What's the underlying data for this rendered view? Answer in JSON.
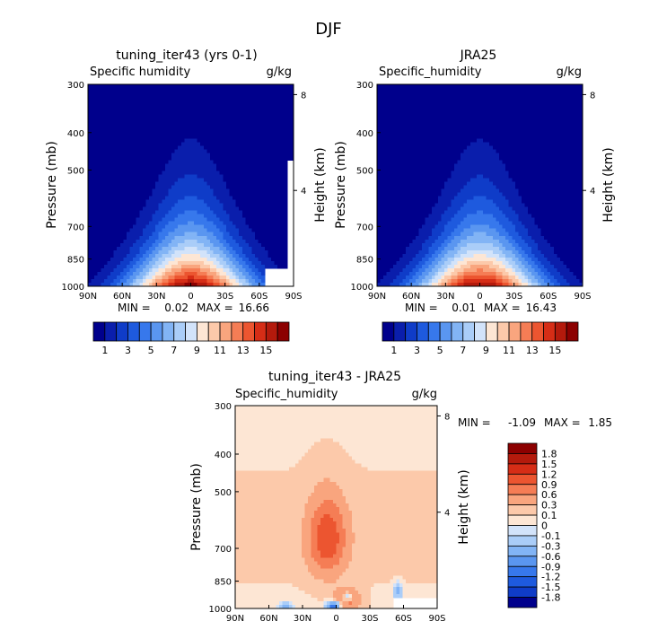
{
  "title": "DJF",
  "chart_data": [
    {
      "type": "heatmap",
      "id": "model",
      "title": "tuning_iter43 (yrs 0-1)",
      "variable": "Specific humidity",
      "units": "g/kg",
      "ylabel": "Pressure (mb)",
      "ylabel_right": "Height (km)",
      "x_ticks": [
        "90N",
        "60N",
        "30N",
        "0",
        "30S",
        "60S",
        "90S"
      ],
      "y_ticks": [
        300,
        400,
        500,
        700,
        850,
        1000
      ],
      "height_ticks": [
        8,
        4
      ],
      "min_label": "MIN =",
      "min_value": "0.02",
      "max_label": "MAX =",
      "max_value": "16.66",
      "min": 0.02,
      "max": 16.66,
      "peak_lat": 0,
      "colorbar_labels": [
        "1",
        "3",
        "5",
        "7",
        "9",
        "11",
        "13",
        "15"
      ]
    },
    {
      "type": "heatmap",
      "id": "obs",
      "title": "JRA25",
      "variable": "Specific_humidity",
      "units": "g/kg",
      "ylabel": "Pressure (mb)",
      "ylabel_right": "Height (km)",
      "x_ticks": [
        "90N",
        "60N",
        "30N",
        "0",
        "30S",
        "60S",
        "90S"
      ],
      "y_ticks": [
        300,
        400,
        500,
        700,
        850,
        1000
      ],
      "height_ticks": [
        8,
        4
      ],
      "min_label": "MIN =",
      "min_value": "0.01",
      "max_label": "MAX =",
      "max_value": "16.43",
      "min": 0.01,
      "max": 16.43,
      "peak_lat": 0,
      "colorbar_labels": [
        "1",
        "3",
        "5",
        "7",
        "9",
        "11",
        "13",
        "15"
      ]
    },
    {
      "type": "heatmap",
      "id": "diff",
      "title": "tuning_iter43 - JRA25",
      "variable": "Specific_humidity",
      "units": "g/kg",
      "ylabel": "Pressure (mb)",
      "ylabel_right": "Height (km)",
      "x_ticks": [
        "90N",
        "60N",
        "30N",
        "0",
        "30S",
        "60S",
        "90S"
      ],
      "y_ticks": [
        300,
        400,
        500,
        700,
        850,
        1000
      ],
      "height_ticks": [
        8,
        4
      ],
      "min_label": "MIN =",
      "min_value": "-1.09",
      "max_label": "MAX =",
      "max_value": "1.85",
      "min": -1.09,
      "max": 1.85,
      "colorbar_labels": [
        "1.8",
        "1.5",
        "1.2",
        "0.9",
        "0.6",
        "0.3",
        "0.1",
        "0",
        "-0.1",
        "-0.3",
        "-0.6",
        "-0.9",
        "-1.2",
        "-1.5",
        "-1.8"
      ]
    }
  ],
  "colors": {
    "abs_scale": [
      "#00008c",
      "#0a1eac",
      "#0f3cc8",
      "#1e5ade",
      "#3778ec",
      "#5a96f0",
      "#82b4f5",
      "#aacdf8",
      "#d2e3fa",
      "#fde6d4",
      "#fcc9aa",
      "#f9a57e",
      "#f57d55",
      "#ec5530",
      "#d62d16",
      "#b41a0c",
      "#8c0000"
    ],
    "diff_scale": [
      "#8c0000",
      "#b41a0c",
      "#d62d16",
      "#ec5530",
      "#f57d55",
      "#f9a57e",
      "#fcc9aa",
      "#fde6d4",
      "#d2e3fa",
      "#aacdf8",
      "#82b4f5",
      "#5a96f0",
      "#3778ec",
      "#1e5ade",
      "#0f3cc8",
      "#00008c"
    ]
  }
}
